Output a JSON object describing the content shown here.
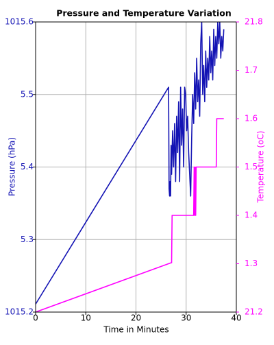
{
  "chart_data": {
    "type": "line",
    "title": "Pressure and Temperature Variation",
    "xlabel": "Time in Minutes",
    "ylabel": "Pressure (hPa)",
    "y2label": "Temperature (oC)",
    "xlim": [
      0,
      40
    ],
    "xticks": [
      0,
      10,
      20,
      30,
      40
    ],
    "ylim": [
      1015.2,
      1015.6
    ],
    "yticks": [
      1015.2,
      {
        "value": 1015.3,
        "label": "5.3"
      },
      {
        "value": 1015.4,
        "label": "5.4"
      },
      {
        "value": 1015.5,
        "label": "5.5"
      },
      1015.6
    ],
    "y2lim": [
      21.2,
      21.8
    ],
    "y2ticks": [
      21.2,
      {
        "value": 21.3,
        "label": "1.3"
      },
      {
        "value": 21.4,
        "label": "1.4"
      },
      {
        "value": 21.5,
        "label": "1.5"
      },
      {
        "value": 21.6,
        "label": "1.6"
      },
      {
        "value": 21.7,
        "label": "1.7"
      },
      21.8
    ],
    "grid": true,
    "ycolor": "#1414b4",
    "y2color": "#ff00ff",
    "series": [
      {
        "name": "Pressure",
        "color": "#1414b4",
        "x": [
          0,
          26.5,
          26.6,
          26.7,
          26.8,
          26.9,
          27.0,
          27.1,
          27.3,
          27.5,
          27.7,
          27.9,
          28.1,
          28.3,
          28.5,
          28.7,
          28.9,
          29.1,
          29.3,
          29.5,
          29.7,
          29.9,
          30.1,
          30.3,
          30.5,
          30.7,
          30.9,
          31.1,
          31.3,
          31.5,
          31.7,
          31.9,
          32.1,
          32.3,
          32.5,
          32.7,
          32.9,
          33.1,
          33.3,
          33.5,
          33.7,
          33.9,
          34.1,
          34.3,
          34.5,
          34.7,
          34.9,
          35.1,
          35.3,
          35.5,
          35.7,
          35.9,
          36.1,
          36.3,
          36.5,
          36.7,
          36.9,
          37.1,
          37.3,
          37.5
        ],
        "values": [
          1015.211,
          1015.51,
          1015.37,
          1015.36,
          1015.38,
          1015.36,
          1015.43,
          1015.39,
          1015.45,
          1015.4,
          1015.46,
          1015.38,
          1015.47,
          1015.42,
          1015.49,
          1015.38,
          1015.51,
          1015.43,
          1015.48,
          1015.4,
          1015.51,
          1015.5,
          1015.45,
          1015.47,
          1015.42,
          1015.39,
          1015.36,
          1015.44,
          1015.5,
          1015.46,
          1015.53,
          1015.48,
          1015.55,
          1015.49,
          1015.52,
          1015.47,
          1015.57,
          1015.6,
          1015.5,
          1015.54,
          1015.49,
          1015.56,
          1015.51,
          1015.55,
          1015.52,
          1015.58,
          1015.53,
          1015.56,
          1015.52,
          1015.59,
          1015.54,
          1015.58,
          1015.55,
          1015.6,
          1015.57,
          1015.6,
          1015.55,
          1015.58,
          1015.56,
          1015.59
        ]
      },
      {
        "name": "Temperature",
        "color": "#ff00ff",
        "axis": "y2",
        "x": [
          0,
          27,
          27.1,
          27.2,
          31.5,
          31.6,
          31.7,
          31.8,
          31.9,
          32.0,
          32.1,
          36,
          36.1,
          37.5
        ],
        "values": [
          21.2,
          21.302,
          21.302,
          21.4,
          21.4,
          21.5,
          21.4,
          21.5,
          21.4,
          21.5,
          21.5,
          21.5,
          21.6,
          21.6
        ]
      }
    ]
  }
}
